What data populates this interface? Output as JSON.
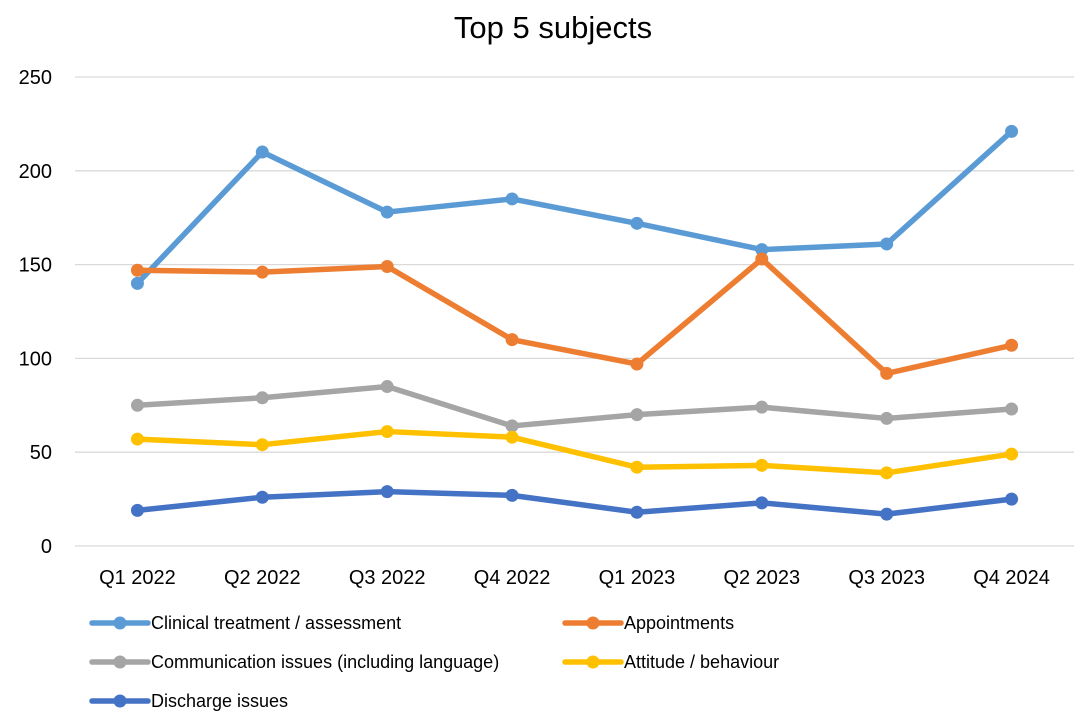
{
  "chart_data": {
    "type": "line",
    "title": "Top 5 subjects",
    "xlabel": "",
    "ylabel": "",
    "categories": [
      "Q1 2022",
      "Q2 2022",
      "Q3 2022",
      "Q4 2022",
      "Q1 2023",
      "Q2 2023",
      "Q3 2023",
      "Q4 2024"
    ],
    "ylim": [
      0,
      250
    ],
    "yticks": [
      0,
      50,
      100,
      150,
      200,
      250
    ],
    "grid": true,
    "legend_position": "bottom",
    "markers": true,
    "series": [
      {
        "name": "Clinical treatment / assessment",
        "color": "#5b9bd5",
        "values": [
          140,
          210,
          178,
          185,
          172,
          158,
          161,
          221
        ]
      },
      {
        "name": "Appointments",
        "color": "#ed7d31",
        "values": [
          147,
          146,
          149,
          110,
          97,
          153,
          92,
          107
        ]
      },
      {
        "name": "Communication issues (including language)",
        "color": "#a5a5a5",
        "values": [
          75,
          79,
          85,
          64,
          70,
          74,
          68,
          73
        ]
      },
      {
        "name": "Attitude / behaviour",
        "color": "#ffc000",
        "values": [
          57,
          54,
          61,
          58,
          42,
          43,
          39,
          49
        ]
      },
      {
        "name": "Discharge issues",
        "color": "#4472c4",
        "values": [
          19,
          26,
          29,
          27,
          18,
          23,
          17,
          25
        ]
      }
    ]
  }
}
